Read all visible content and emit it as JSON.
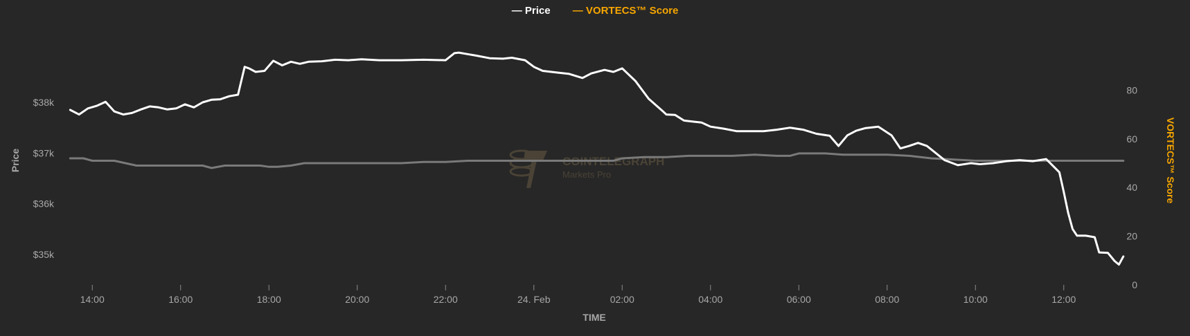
{
  "colors": {
    "background": "#272727",
    "price": "#ffffff",
    "vortecs": "#f7a600",
    "vortecs_line": "#7a7a7a",
    "axis_text": "#a8a8a8",
    "watermark": "#4a4336"
  },
  "legend": {
    "price_label": "Price",
    "vortecs_label": "VORTECS™ Score"
  },
  "watermark": {
    "brand": "COINTELEGRAPH",
    "sub": "Markets Pro"
  },
  "chart_data": {
    "type": "line",
    "xlabel": "TIME",
    "ylabel_left": "Price",
    "ylabel_right": "VORTECS™ Score",
    "x_ticks": [
      "14:00",
      "16:00",
      "18:00",
      "20:00",
      "22:00",
      "24. Feb",
      "02:00",
      "04:00",
      "06:00",
      "08:00",
      "10:00",
      "12:00"
    ],
    "x_tick_hours": [
      14,
      16,
      18,
      20,
      22,
      24,
      26,
      28,
      30,
      32,
      34,
      36
    ],
    "x_range_hours": [
      13.4,
      37.4
    ],
    "y_left_ticks": [
      "$35k",
      "$36k",
      "$37k",
      "$38k"
    ],
    "y_left_tick_values": [
      35000,
      36000,
      37000,
      38000
    ],
    "y_left_range": [
      34400,
      39200
    ],
    "y_right_ticks": [
      "0",
      "20",
      "40",
      "60",
      "80"
    ],
    "y_right_tick_values": [
      0,
      20,
      40,
      60,
      80
    ],
    "y_right_range": [
      0,
      100
    ],
    "series": [
      {
        "name": "Price",
        "axis": "left",
        "x_hours": [
          13.5,
          13.7,
          13.9,
          14.1,
          14.3,
          14.5,
          14.7,
          14.9,
          15.1,
          15.3,
          15.5,
          15.7,
          15.9,
          16.1,
          16.3,
          16.5,
          16.7,
          16.9,
          17.1,
          17.3,
          17.45,
          17.55,
          17.7,
          17.9,
          18.1,
          18.3,
          18.5,
          18.7,
          18.9,
          19.2,
          19.5,
          19.8,
          20.1,
          20.5,
          21.0,
          21.5,
          22.0,
          22.2,
          22.3,
          22.5,
          22.7,
          23.0,
          23.3,
          23.5,
          23.8,
          24.0,
          24.2,
          24.5,
          24.8,
          25.1,
          25.3,
          25.6,
          25.8,
          26.0,
          26.3,
          26.6,
          26.9,
          27.0,
          27.2,
          27.4,
          27.6,
          27.8,
          28.0,
          28.3,
          28.6,
          28.9,
          29.2,
          29.5,
          29.8,
          30.1,
          30.4,
          30.7,
          30.9,
          31.1,
          31.3,
          31.5,
          31.8,
          32.1,
          32.3,
          32.5,
          32.7,
          32.9,
          33.1,
          33.3,
          33.6,
          33.9,
          34.1,
          34.4,
          34.7,
          35.0,
          35.3,
          35.6,
          35.9,
          36.0,
          36.1,
          36.2,
          36.3,
          36.5,
          36.7,
          36.8,
          37.0,
          37.15,
          37.25,
          37.35
        ],
        "values": [
          37850,
          37760,
          37880,
          37930,
          38010,
          37820,
          37760,
          37790,
          37860,
          37920,
          37900,
          37860,
          37880,
          37960,
          37900,
          38000,
          38050,
          38060,
          38120,
          38150,
          38700,
          38670,
          38600,
          38620,
          38820,
          38730,
          38800,
          38760,
          38800,
          38810,
          38840,
          38830,
          38850,
          38830,
          38830,
          38840,
          38830,
          38970,
          38980,
          38950,
          38920,
          38870,
          38860,
          38880,
          38830,
          38700,
          38620,
          38590,
          38560,
          38480,
          38570,
          38640,
          38600,
          38670,
          38420,
          38070,
          37840,
          37760,
          37750,
          37640,
          37620,
          37600,
          37520,
          37480,
          37430,
          37430,
          37430,
          37460,
          37500,
          37460,
          37380,
          37340,
          37140,
          37350,
          37440,
          37490,
          37520,
          37350,
          37090,
          37140,
          37200,
          37140,
          37000,
          36860,
          36760,
          36800,
          36780,
          36800,
          36840,
          36860,
          36840,
          36880,
          36620,
          36230,
          35820,
          35500,
          35370,
          35370,
          35340,
          35040,
          35030,
          34870,
          34800,
          34960
        ]
      },
      {
        "name": "VORTECS™ Score",
        "axis": "right",
        "x_hours": [
          13.5,
          13.8,
          14.0,
          14.5,
          15.0,
          15.3,
          15.6,
          16.0,
          16.5,
          16.7,
          17.0,
          17.3,
          17.8,
          18.0,
          18.2,
          18.5,
          18.8,
          19.2,
          19.5,
          20.0,
          20.5,
          21.0,
          21.5,
          22.0,
          22.5,
          23.0,
          23.5,
          24.0,
          24.5,
          25.0,
          25.5,
          25.8,
          26.0,
          26.5,
          27.0,
          27.5,
          28.0,
          28.5,
          29.0,
          29.5,
          29.8,
          30.0,
          30.3,
          30.6,
          31.0,
          31.5,
          32.0,
          32.5,
          33.0,
          33.5,
          34.0,
          34.5,
          35.0,
          35.5,
          36.0,
          36.5,
          37.0,
          37.35
        ],
        "values": [
          52,
          52,
          51,
          51,
          49,
          49,
          49,
          49,
          49,
          48,
          49,
          49,
          49,
          48.5,
          48.5,
          49,
          50,
          50,
          50,
          50,
          50,
          50,
          50.5,
          50.5,
          51,
          51,
          51,
          51,
          51,
          51,
          51,
          51,
          52,
          52.5,
          52.5,
          53,
          53,
          53,
          53.5,
          53,
          53,
          54,
          54,
          54,
          53.5,
          53.5,
          53.5,
          53,
          52,
          51.5,
          51,
          51,
          51,
          51,
          51,
          51,
          51,
          51
        ]
      }
    ]
  }
}
